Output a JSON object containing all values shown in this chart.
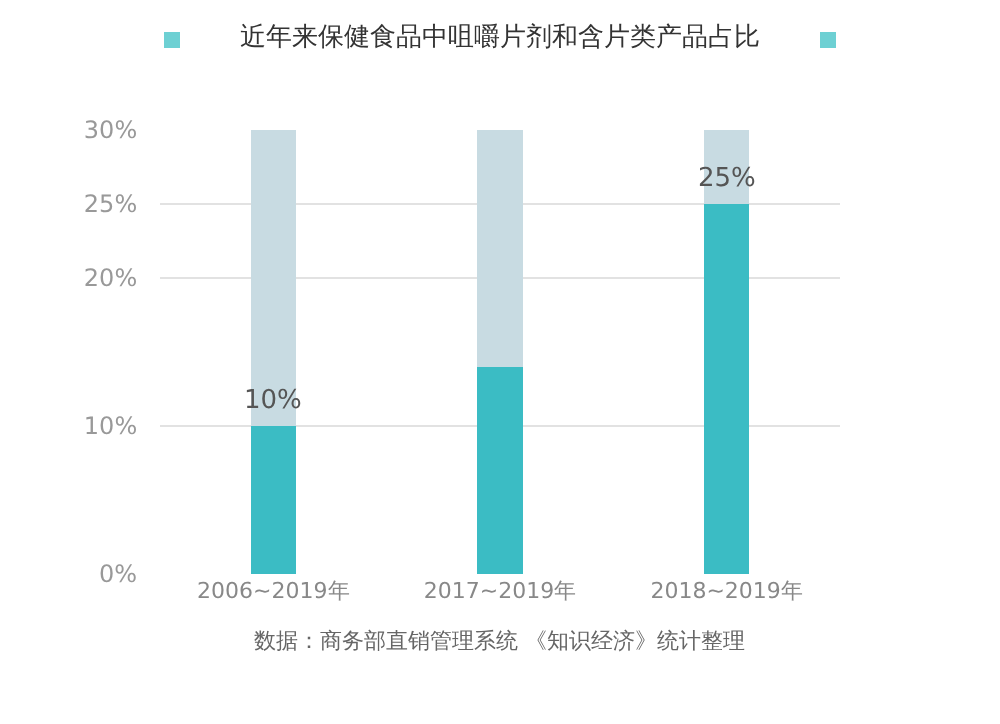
{
  "chart_data": {
    "type": "bar",
    "title": "近年来保健食品中咀嚼片剂和含片类产品占比",
    "categories": [
      "2006~2019年",
      "2017~2019年",
      "2018~2019年"
    ],
    "series": [
      {
        "color": "#3bbcc4",
        "values": [
          10,
          14,
          25
        ],
        "value_labels": [
          "10%",
          null,
          "25%"
        ]
      },
      {
        "color": "#c8dbe2",
        "values": [
          20,
          16,
          5
        ]
      }
    ],
    "ylim": [
      0,
      30
    ],
    "yticks": [
      {
        "value": 0,
        "label": "0%"
      },
      {
        "value": 10,
        "label": "10%"
      },
      {
        "value": 20,
        "label": "20%"
      },
      {
        "value": 25,
        "label": "25%"
      },
      {
        "value": 30,
        "label": "30%"
      }
    ],
    "grid": "y",
    "stacked": true,
    "annotations": [
      "数据：商务部直销管理系统 《知识经济》统计整理"
    ]
  }
}
